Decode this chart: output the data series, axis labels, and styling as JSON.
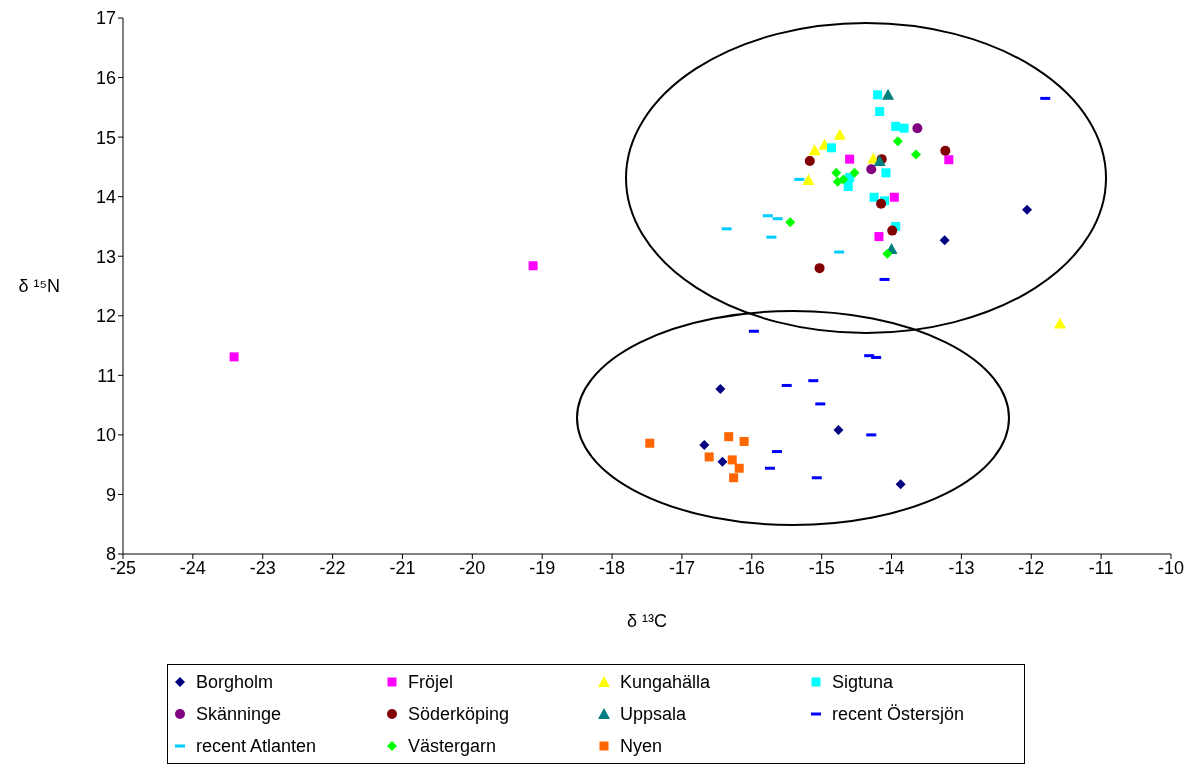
{
  "chart_data": {
    "type": "scatter",
    "xlabel": "δ ¹³C",
    "ylabel": "δ ¹⁵N",
    "xlim": [
      -25,
      -10
    ],
    "xticks": [
      -25,
      -24,
      -23,
      -22,
      -21,
      -20,
      -19,
      -18,
      -17,
      -16,
      -15,
      -14,
      -13,
      -12,
      -11,
      -10
    ],
    "ylim": [
      8,
      17
    ],
    "yticks": [
      8,
      9,
      10,
      11,
      12,
      13,
      14,
      15,
      16,
      17
    ],
    "grid": false,
    "legend": "bottom",
    "series": [
      {
        "name": "Borgholm",
        "color": "#000080",
        "marker": "diamond",
        "x": [
          -12.06,
          -13.24,
          -16.45,
          -14.76,
          -16.68,
          -16.42,
          -13.87
        ],
        "values": [
          13.78,
          13.27,
          10.77,
          10.08,
          9.83,
          9.55,
          9.17
        ]
      },
      {
        "name": "Fröjel",
        "color": "#ff00ff",
        "marker": "square",
        "x": [
          -23.41,
          -19.13,
          -14.6,
          -13.18,
          -13.96,
          -14.18
        ],
        "values": [
          11.31,
          12.84,
          14.63,
          14.62,
          13.99,
          13.33
        ]
      },
      {
        "name": "Kungahälla",
        "color": "#ffff00",
        "marker": "triangle",
        "x": [
          -14.74,
          -14.96,
          -15.1,
          -15.19,
          -14.26,
          -11.59
        ],
        "values": [
          15.04,
          14.87,
          14.78,
          14.28,
          14.64,
          11.87
        ]
      },
      {
        "name": "Sigtuna",
        "color": "#00ffff",
        "marker": "square",
        "x": [
          -14.2,
          -14.17,
          -13.94,
          -13.82,
          -14.86,
          -14.08,
          -14.62,
          -14.6,
          -14.25,
          -14.1,
          -13.94
        ],
        "values": [
          15.71,
          15.43,
          15.18,
          15.15,
          14.82,
          14.4,
          14.17,
          14.32,
          13.99,
          13.93,
          13.5
        ]
      },
      {
        "name": "Skänninge",
        "color": "#800080",
        "marker": "circle",
        "x": [
          -13.63,
          -14.29
        ],
        "values": [
          15.15,
          14.46
        ]
      },
      {
        "name": "Söderköping",
        "color": "#800000",
        "marker": "circle",
        "x": [
          -13.23,
          -15.17,
          -14.14,
          -14.15,
          -13.99,
          -15.03
        ],
        "values": [
          14.77,
          14.6,
          14.63,
          13.88,
          13.43,
          12.8
        ]
      },
      {
        "name": "Uppsala",
        "color": "#008080",
        "marker": "triangle",
        "x": [
          -14.05,
          -14.17,
          -14.0
        ],
        "values": [
          15.71,
          14.6,
          13.12
        ]
      },
      {
        "name": "recent Östersjön",
        "color": "#0000ff",
        "x": [
          -11.8,
          -14.1,
          -15.97,
          -14.32,
          -14.22,
          -15.5,
          -15.12,
          -15.02,
          -14.29,
          -15.64,
          -15.74,
          -15.07
        ],
        "values": [
          15.65,
          12.61,
          11.74,
          11.33,
          11.3,
          10.83,
          10.91,
          10.52,
          10.0,
          9.72,
          9.44,
          9.28
        ]
      },
      {
        "name": "recent Atlanten",
        "color": "#00ccff",
        "x": [
          -15.32,
          -15.77,
          -15.63,
          -16.36,
          -15.72,
          -14.75
        ],
        "values": [
          14.29,
          13.68,
          13.63,
          13.46,
          13.32,
          13.07
        ]
      },
      {
        "name": "Västergarn",
        "color": "#00ff00",
        "marker": "diamond",
        "x": [
          -13.91,
          -13.65,
          -14.79,
          -14.53,
          -14.69,
          -14.77,
          -15.45,
          -14.06
        ],
        "values": [
          14.93,
          14.71,
          14.4,
          14.4,
          14.29,
          14.25,
          13.57,
          13.04
        ]
      },
      {
        "name": "Nyen",
        "color": "#ff6600",
        "marker": "square",
        "x": [
          -17.46,
          -16.33,
          -16.11,
          -16.61,
          -16.28,
          -16.18,
          -16.26
        ],
        "values": [
          9.86,
          9.97,
          9.89,
          9.63,
          9.58,
          9.44,
          9.28
        ]
      }
    ]
  }
}
